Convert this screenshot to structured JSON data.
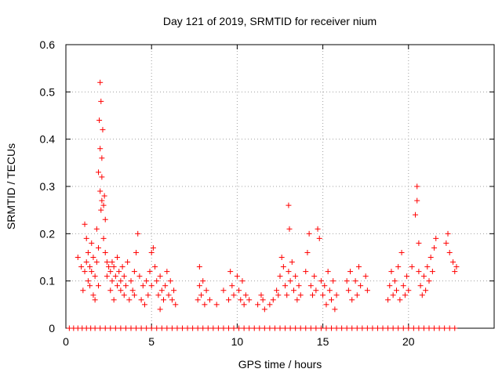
{
  "chart_data": {
    "type": "scatter",
    "title": "Day 121 of 2019, SRMTID for receiver nium",
    "xlabel": "GPS time / hours",
    "ylabel": "SRMTID / TECUs",
    "xlim": [
      0,
      25
    ],
    "ylim": [
      0,
      0.6
    ],
    "xticks": [
      "0",
      "5",
      "10",
      "15",
      "20"
    ],
    "yticks": [
      "0",
      "0.1",
      "0.2",
      "0.3",
      "0.4",
      "0.5",
      "0.6"
    ],
    "grid": true,
    "marker": "plus",
    "color": "#ff0000",
    "series": [
      {
        "name": "SRMTID",
        "points": [
          [
            0.7,
            0.15
          ],
          [
            0.9,
            0.13
          ],
          [
            1.0,
            0.08
          ],
          [
            1.1,
            0.12
          ],
          [
            1.1,
            0.22
          ],
          [
            1.2,
            0.19
          ],
          [
            1.2,
            0.14
          ],
          [
            1.3,
            0.1
          ],
          [
            1.3,
            0.16
          ],
          [
            1.4,
            0.13
          ],
          [
            1.4,
            0.09
          ],
          [
            1.5,
            0.18
          ],
          [
            1.5,
            0.12
          ],
          [
            1.6,
            0.15
          ],
          [
            1.6,
            0.07
          ],
          [
            1.7,
            0.11
          ],
          [
            1.7,
            0.06
          ],
          [
            1.8,
            0.14
          ],
          [
            1.8,
            0.21
          ],
          [
            1.9,
            0.09
          ],
          [
            1.9,
            0.17
          ],
          [
            1.9,
            0.33
          ],
          [
            1.95,
            0.44
          ],
          [
            2.0,
            0.52
          ],
          [
            2.0,
            0.38
          ],
          [
            2.0,
            0.29
          ],
          [
            2.05,
            0.48
          ],
          [
            2.05,
            0.25
          ],
          [
            2.1,
            0.27
          ],
          [
            2.1,
            0.32
          ],
          [
            2.1,
            0.36
          ],
          [
            2.15,
            0.42
          ],
          [
            2.2,
            0.26
          ],
          [
            2.2,
            0.19
          ],
          [
            2.25,
            0.28
          ],
          [
            2.3,
            0.23
          ],
          [
            2.3,
            0.16
          ],
          [
            2.4,
            0.14
          ],
          [
            2.4,
            0.11
          ],
          [
            2.5,
            0.13
          ],
          [
            2.6,
            0.12
          ],
          [
            2.6,
            0.08
          ],
          [
            2.7,
            0.14
          ],
          [
            2.7,
            0.1
          ],
          [
            2.8,
            0.13
          ],
          [
            2.8,
            0.06
          ],
          [
            2.9,
            0.11
          ],
          [
            3.0,
            0.09
          ],
          [
            3.0,
            0.15
          ],
          [
            3.1,
            0.12
          ],
          [
            3.2,
            0.08
          ],
          [
            3.2,
            0.1
          ],
          [
            3.3,
            0.13
          ],
          [
            3.4,
            0.07
          ],
          [
            3.4,
            0.11
          ],
          [
            3.5,
            0.09
          ],
          [
            3.6,
            0.14
          ],
          [
            3.7,
            0.06
          ],
          [
            3.8,
            0.1
          ],
          [
            3.9,
            0.08
          ],
          [
            4.0,
            0.12
          ],
          [
            4.0,
            0.07
          ],
          [
            4.1,
            0.16
          ],
          [
            4.2,
            0.2
          ],
          [
            4.3,
            0.11
          ],
          [
            4.4,
            0.06
          ],
          [
            4.5,
            0.09
          ],
          [
            4.6,
            0.05
          ],
          [
            4.7,
            0.1
          ],
          [
            4.8,
            0.07
          ],
          [
            4.9,
            0.12
          ],
          [
            5.0,
            0.09
          ],
          [
            5.0,
            0.16
          ],
          [
            5.1,
            0.17
          ],
          [
            5.2,
            0.13
          ],
          [
            5.3,
            0.1
          ],
          [
            5.4,
            0.07
          ],
          [
            5.5,
            0.11
          ],
          [
            5.5,
            0.04
          ],
          [
            5.6,
            0.08
          ],
          [
            5.7,
            0.06
          ],
          [
            5.8,
            0.09
          ],
          [
            5.9,
            0.12
          ],
          [
            6.0,
            0.07
          ],
          [
            6.1,
            0.1
          ],
          [
            6.2,
            0.06
          ],
          [
            6.3,
            0.08
          ],
          [
            6.4,
            0.05
          ],
          [
            7.7,
            0.06
          ],
          [
            7.8,
            0.09
          ],
          [
            7.8,
            0.13
          ],
          [
            7.9,
            0.07
          ],
          [
            8.0,
            0.1
          ],
          [
            8.1,
            0.05
          ],
          [
            8.2,
            0.08
          ],
          [
            8.4,
            0.06
          ],
          [
            8.8,
            0.05
          ],
          [
            9.2,
            0.08
          ],
          [
            9.5,
            0.06
          ],
          [
            9.6,
            0.12
          ],
          [
            9.7,
            0.09
          ],
          [
            9.8,
            0.07
          ],
          [
            10.0,
            0.11
          ],
          [
            10.1,
            0.08
          ],
          [
            10.2,
            0.06
          ],
          [
            10.3,
            0.1
          ],
          [
            10.4,
            0.05
          ],
          [
            10.5,
            0.07
          ],
          [
            10.7,
            0.06
          ],
          [
            11.2,
            0.05
          ],
          [
            11.4,
            0.07
          ],
          [
            11.5,
            0.06
          ],
          [
            11.6,
            0.04
          ],
          [
            11.9,
            0.05
          ],
          [
            12.1,
            0.06
          ],
          [
            12.3,
            0.08
          ],
          [
            12.4,
            0.07
          ],
          [
            12.5,
            0.11
          ],
          [
            12.6,
            0.15
          ],
          [
            12.7,
            0.13
          ],
          [
            12.8,
            0.09
          ],
          [
            12.9,
            0.07
          ],
          [
            13.0,
            0.12
          ],
          [
            13.0,
            0.26
          ],
          [
            13.05,
            0.21
          ],
          [
            13.1,
            0.1
          ],
          [
            13.2,
            0.14
          ],
          [
            13.3,
            0.08
          ],
          [
            13.4,
            0.11
          ],
          [
            13.5,
            0.06
          ],
          [
            13.6,
            0.09
          ],
          [
            13.7,
            0.07
          ],
          [
            14.0,
            0.12
          ],
          [
            14.1,
            0.16
          ],
          [
            14.2,
            0.2
          ],
          [
            14.3,
            0.09
          ],
          [
            14.4,
            0.07
          ],
          [
            14.5,
            0.11
          ],
          [
            14.6,
            0.08
          ],
          [
            14.7,
            0.21
          ],
          [
            14.8,
            0.19
          ],
          [
            14.9,
            0.1
          ],
          [
            15.0,
            0.07
          ],
          [
            15.1,
            0.09
          ],
          [
            15.2,
            0.05
          ],
          [
            15.3,
            0.12
          ],
          [
            15.4,
            0.08
          ],
          [
            15.5,
            0.06
          ],
          [
            15.6,
            0.1
          ],
          [
            15.7,
            0.04
          ],
          [
            15.8,
            0.07
          ],
          [
            16.4,
            0.1
          ],
          [
            16.5,
            0.08
          ],
          [
            16.6,
            0.12
          ],
          [
            16.7,
            0.06
          ],
          [
            16.9,
            0.1
          ],
          [
            17.0,
            0.07
          ],
          [
            17.1,
            0.13
          ],
          [
            17.2,
            0.09
          ],
          [
            17.5,
            0.11
          ],
          [
            17.6,
            0.08
          ],
          [
            18.8,
            0.06
          ],
          [
            18.9,
            0.09
          ],
          [
            19.0,
            0.12
          ],
          [
            19.1,
            0.07
          ],
          [
            19.2,
            0.1
          ],
          [
            19.3,
            0.08
          ],
          [
            19.4,
            0.13
          ],
          [
            19.5,
            0.06
          ],
          [
            19.6,
            0.16
          ],
          [
            19.7,
            0.09
          ],
          [
            19.8,
            0.07
          ],
          [
            19.9,
            0.11
          ],
          [
            20.0,
            0.08
          ],
          [
            20.2,
            0.13
          ],
          [
            20.4,
            0.24
          ],
          [
            20.5,
            0.27
          ],
          [
            20.5,
            0.3
          ],
          [
            20.6,
            0.18
          ],
          [
            20.6,
            0.12
          ],
          [
            20.7,
            0.09
          ],
          [
            20.8,
            0.07
          ],
          [
            20.9,
            0.11
          ],
          [
            21.0,
            0.08
          ],
          [
            21.1,
            0.13
          ],
          [
            21.2,
            0.1
          ],
          [
            21.3,
            0.15
          ],
          [
            21.4,
            0.12
          ],
          [
            21.5,
            0.17
          ],
          [
            21.6,
            0.19
          ],
          [
            22.2,
            0.18
          ],
          [
            22.3,
            0.2
          ],
          [
            22.4,
            0.16
          ],
          [
            22.6,
            0.14
          ],
          [
            22.7,
            0.12
          ],
          [
            22.8,
            0.13
          ]
        ],
        "zero_x": [
          0.2,
          0.45,
          0.7,
          0.95,
          1.2,
          1.45,
          1.7,
          2.0,
          2.3,
          2.6,
          2.9,
          3.2,
          3.5,
          3.8,
          4.1,
          4.4,
          4.7,
          5.0,
          5.3,
          5.6,
          5.9,
          6.2,
          6.5,
          6.8,
          7.1,
          7.4,
          7.7,
          8.0,
          8.3,
          8.6,
          8.9,
          9.2,
          9.5,
          9.8,
          10.1,
          10.4,
          10.7,
          11.0,
          11.3,
          11.6,
          11.9,
          12.2,
          12.5,
          12.8,
          13.1,
          13.4,
          13.7,
          14.0,
          14.3,
          14.6,
          14.9,
          15.2,
          15.5,
          15.8,
          16.1,
          16.4,
          16.7,
          17.0,
          17.3,
          17.6,
          17.9,
          18.2,
          18.5,
          18.8,
          19.1,
          19.4,
          19.7,
          20.0,
          20.3,
          20.6,
          20.9,
          21.2,
          21.5,
          21.8,
          22.1,
          22.4,
          22.7
        ]
      }
    ]
  }
}
